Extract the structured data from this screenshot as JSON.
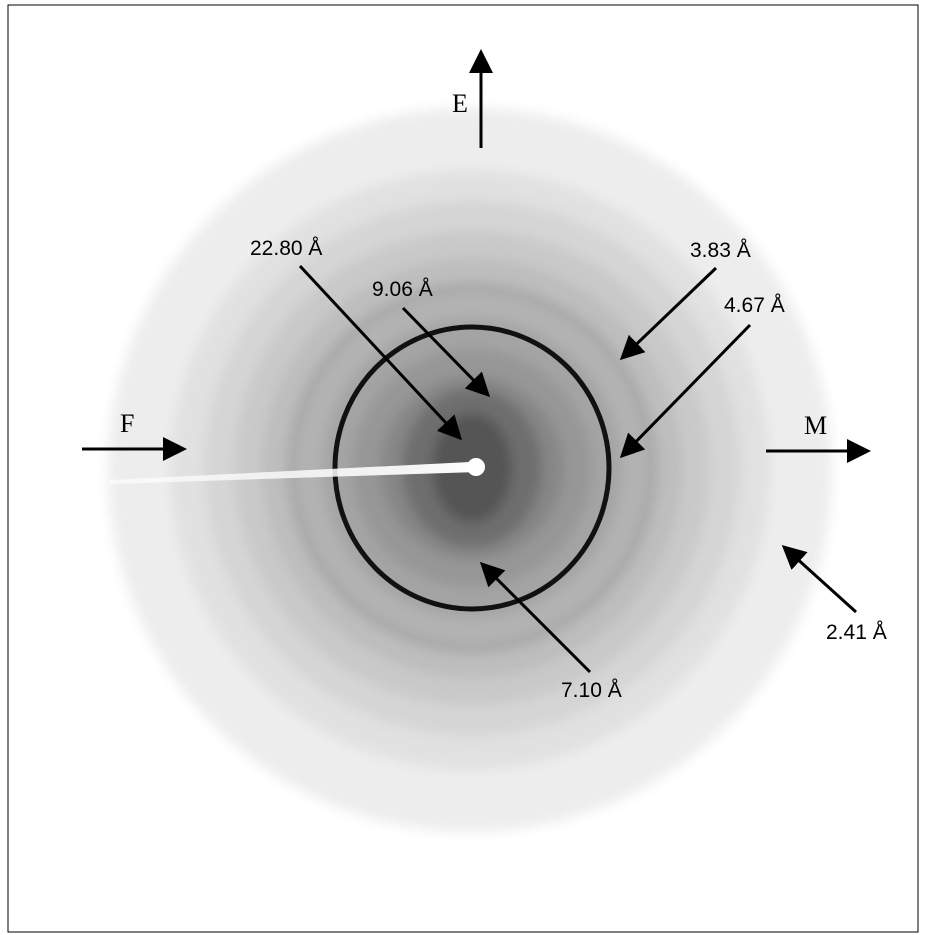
{
  "directions": [
    {
      "label": "E"
    },
    {
      "label": "F"
    },
    {
      "label": "M"
    }
  ],
  "spacings": [
    {
      "label": "22.80 Å"
    },
    {
      "label": "9.06 Å"
    },
    {
      "label": "3.83 Å"
    },
    {
      "label": "4.67 Å"
    },
    {
      "label": "7.10 Å"
    },
    {
      "label": "2.41 Å"
    }
  ]
}
